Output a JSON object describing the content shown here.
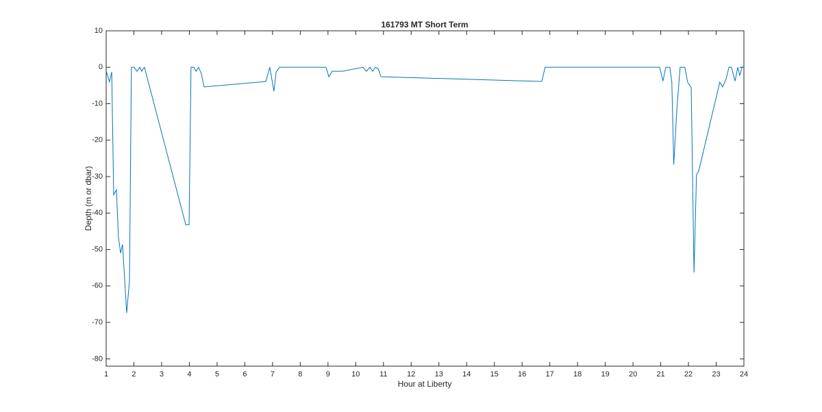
{
  "chart_data": {
    "type": "line",
    "title": "161793 MT Short Term",
    "x_label": "Hour at Liberty",
    "y_label": "Depth (m or dbar)",
    "color": "#0072bd",
    "x": [
      1,
      1.12,
      1.2,
      1.27,
      1.37,
      1.44,
      1.52,
      1.59,
      1.74,
      1.84,
      1.91,
      2.01,
      2.11,
      2.21,
      2.28,
      2.38,
      3.87,
      3.99,
      4.06,
      4.16,
      4.24,
      4.33,
      4.43,
      4.53,
      6.76,
      6.9,
      7.05,
      7.13,
      7.25,
      8.93,
      9.03,
      9.15,
      9.52,
      10.26,
      10.39,
      10.51,
      10.61,
      10.71,
      10.81,
      10.91,
      16.71,
      16.83,
      20.96,
      21.08,
      21.18,
      21.33,
      21.4,
      21.47,
      21.58,
      21.7,
      21.87,
      21.97,
      22.1,
      22.2,
      22.29,
      22.37,
      23.13,
      23.23,
      23.36,
      23.46,
      23.55,
      23.68,
      23.78,
      23.85,
      23.93,
      24
    ],
    "values": [
      -1,
      -4,
      -1.3,
      -35,
      -33.6,
      -46.4,
      -51,
      -48.6,
      -67.4,
      -58.6,
      0,
      0,
      -1.1,
      0,
      -1.1,
      0,
      -43.2,
      -43.2,
      0,
      0,
      -1.1,
      0,
      -1.7,
      -5.4,
      -3.9,
      0,
      -6.6,
      -1.3,
      0,
      0,
      -2.6,
      -1.1,
      -1.1,
      0,
      -1.1,
      0,
      -1.1,
      0,
      -0.4,
      -2.6,
      -3.9,
      0,
      0,
      -3.8,
      0,
      0,
      -4.1,
      -26.7,
      -11.6,
      0,
      0,
      -4.1,
      -5.6,
      -56.3,
      -29.5,
      -28.5,
      -4.1,
      -5.4,
      -3.2,
      0,
      0,
      -3.8,
      0,
      -2.3,
      0,
      0
    ],
    "xlim": [
      1,
      24
    ],
    "xticks": [
      1,
      2,
      3,
      4,
      5,
      6,
      7,
      8,
      9,
      10,
      11,
      12,
      13,
      14,
      15,
      16,
      17,
      18,
      19,
      20,
      21,
      22,
      23,
      24
    ],
    "ylim": [
      -82,
      10
    ],
    "yticks": [
      -80,
      -70,
      -60,
      -50,
      -40,
      -30,
      -20,
      -10,
      0,
      10
    ],
    "grid": false
  }
}
